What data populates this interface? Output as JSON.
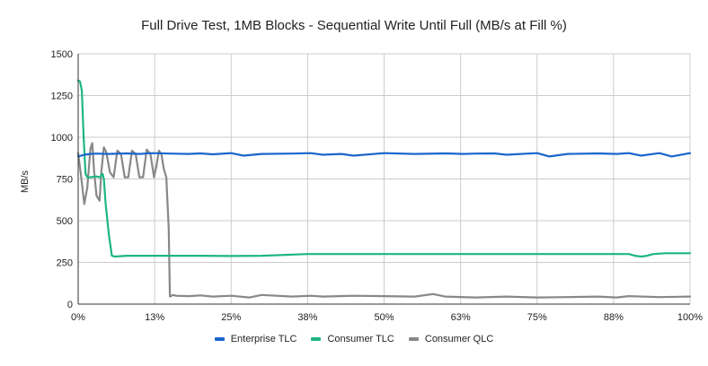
{
  "chart_data": {
    "type": "line",
    "title": "Full Drive Test, 1MB Blocks - Sequential Write Until Full (MB/s at Fill %)",
    "xlabel": "",
    "ylabel": "MB/s",
    "ylim": [
      0,
      1500
    ],
    "xlim": [
      0,
      100
    ],
    "y_ticks": [
      "0",
      "250",
      "500",
      "750",
      "1000",
      "1250",
      "1500"
    ],
    "x_ticks": [
      "0%",
      "13%",
      "25%",
      "38%",
      "50%",
      "63%",
      "75%",
      "88%",
      "100%"
    ],
    "grid": true,
    "legend_position": "bottom",
    "series": [
      {
        "name": "Enterprise TLC",
        "color": "#1a66cc",
        "x": [
          0,
          1,
          2,
          3,
          5,
          8,
          10,
          12,
          15,
          18,
          20,
          22,
          25,
          27,
          30,
          35,
          38,
          40,
          43,
          45,
          50,
          55,
          60,
          63,
          65,
          68,
          70,
          75,
          77,
          80,
          85,
          88,
          90,
          92,
          95,
          97,
          100
        ],
        "values": [
          885,
          895,
          900,
          902,
          900,
          903,
          900,
          905,
          902,
          900,
          903,
          898,
          905,
          890,
          900,
          902,
          905,
          895,
          900,
          890,
          905,
          900,
          903,
          900,
          902,
          903,
          895,
          905,
          885,
          900,
          903,
          900,
          905,
          890,
          905,
          885,
          905
        ]
      },
      {
        "name": "Consumer TLC",
        "color": "#1db584",
        "x": [
          0,
          0.3,
          0.6,
          0.9,
          1.2,
          1.5,
          2,
          3,
          3.5,
          4,
          4.2,
          4.5,
          5,
          5.5,
          6,
          8,
          10,
          15,
          20,
          25,
          30,
          37.5,
          40,
          50,
          60,
          70,
          80,
          88,
          90,
          91,
          92,
          93,
          94,
          96,
          100
        ],
        "values": [
          1340,
          1335,
          1280,
          1000,
          780,
          760,
          760,
          765,
          760,
          780,
          750,
          600,
          420,
          290,
          285,
          290,
          290,
          290,
          290,
          288,
          290,
          300,
          300,
          300,
          300,
          300,
          300,
          300,
          300,
          290,
          285,
          290,
          300,
          305,
          305
        ]
      },
      {
        "name": "Consumer QLC",
        "color": "#888888",
        "x": [
          0,
          0.5,
          1,
          1.5,
          2,
          2.3,
          2.6,
          3,
          3.5,
          3.8,
          4.2,
          4.6,
          5.2,
          5.8,
          6.4,
          7,
          7.6,
          8.2,
          8.8,
          9.4,
          10,
          10.6,
          11.2,
          11.8,
          12.4,
          12.8,
          13.2,
          13.6,
          14,
          14.4,
          14.8,
          15,
          15.5,
          16,
          18,
          20,
          22,
          25,
          28,
          30,
          35,
          38,
          40,
          45,
          50,
          55,
          58,
          60,
          65,
          70,
          75,
          80,
          85,
          88,
          90,
          95,
          100
        ],
        "values": [
          905,
          760,
          600,
          700,
          930,
          965,
          800,
          650,
          620,
          800,
          940,
          910,
          790,
          760,
          920,
          900,
          760,
          760,
          920,
          900,
          760,
          760,
          925,
          900,
          760,
          830,
          920,
          900,
          810,
          760,
          450,
          45,
          55,
          50,
          48,
          52,
          45,
          50,
          40,
          55,
          45,
          50,
          45,
          50,
          48,
          45,
          60,
          45,
          40,
          45,
          40,
          42,
          45,
          40,
          48,
          42,
          45
        ]
      }
    ]
  },
  "legend": {
    "items": [
      {
        "label": "Enterprise TLC",
        "color": "#1a66cc"
      },
      {
        "label": "Consumer TLC",
        "color": "#1db584"
      },
      {
        "label": "Consumer QLC",
        "color": "#888888"
      }
    ]
  }
}
